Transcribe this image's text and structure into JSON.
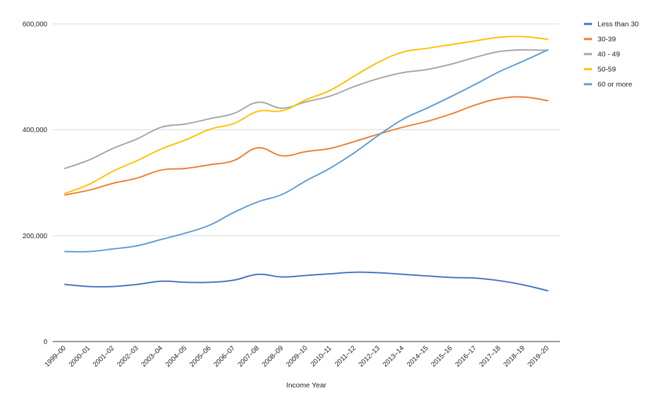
{
  "chart_data": {
    "type": "line",
    "title": "",
    "xlabel": "Income Year",
    "ylabel": "",
    "ylim": [
      0,
      600000
    ],
    "yticks": [
      0,
      200000,
      400000,
      600000
    ],
    "ytick_labels": [
      "0",
      "200,000",
      "400,000",
      "600,000"
    ],
    "grid": "horizontal",
    "legend_position": "right",
    "categories": [
      "1999–00",
      "2000–01",
      "2001–02",
      "2002–03",
      "2003–04",
      "2004–05",
      "2005–06",
      "2006–07",
      "2007–08",
      "2008–09",
      "2009–10",
      "2010–11",
      "2011–12",
      "2012–13",
      "2013–14",
      "2014–15",
      "2015–16",
      "2016–17",
      "2017–18",
      "2018–19",
      "2019–20"
    ],
    "series": [
      {
        "name": "Less than 30",
        "color": "#4472C4",
        "values": [
          108000,
          104000,
          104000,
          108000,
          114000,
          112000,
          112000,
          116000,
          127000,
          122000,
          125000,
          128000,
          131000,
          130000,
          127000,
          124000,
          121000,
          120000,
          115000,
          107000,
          96000
        ]
      },
      {
        "name": "30-39",
        "color": "#ED7D31",
        "values": [
          277000,
          286000,
          299000,
          309000,
          324000,
          327000,
          334000,
          342000,
          366000,
          351000,
          359000,
          365000,
          378000,
          392000,
          405000,
          416000,
          430000,
          447000,
          459000,
          462000,
          455000
        ]
      },
      {
        "name": "40 - 49",
        "color": "#A5A5A5",
        "values": [
          327000,
          343000,
          365000,
          383000,
          405000,
          411000,
          421000,
          431000,
          452000,
          441000,
          453000,
          464000,
          482000,
          497000,
          508000,
          514000,
          524000,
          537000,
          548000,
          551000,
          550000
        ]
      },
      {
        "name": "50-59",
        "color": "#FFC000",
        "values": [
          280000,
          297000,
          322000,
          342000,
          364000,
          381000,
          401000,
          412000,
          435000,
          436000,
          457000,
          475000,
          502000,
          528000,
          547000,
          554000,
          561000,
          568000,
          575000,
          576000,
          571000
        ]
      },
      {
        "name": "60 or more",
        "color": "#5B9BD5",
        "values": [
          170000,
          170000,
          175000,
          181000,
          193000,
          205000,
          220000,
          244000,
          264000,
          278000,
          304000,
          328000,
          357000,
          390000,
          420000,
          441000,
          463000,
          486000,
          510000,
          530000,
          551000
        ]
      }
    ]
  }
}
